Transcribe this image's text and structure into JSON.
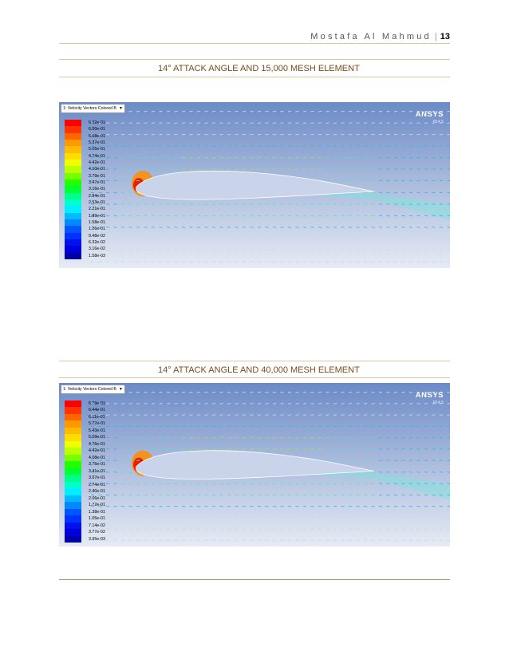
{
  "header": {
    "author": "Mostafa Al Mahmud",
    "separator": "|",
    "page_number": "13"
  },
  "figures": [
    {
      "caption": "14° ATTACK ANGLE AND 15,000 MESH ELEMENT",
      "dropdown": {
        "label": "1: Velocity Vectors Colored B",
        "arrow": "▼"
      },
      "logo": {
        "name": "ANSYS",
        "version": "R14.5"
      },
      "legend": {
        "labels": [
          "6.32e-01",
          "6.00e-01",
          "5.68e-01",
          "5.37e-01",
          "5.05e-01",
          "4.74e-01",
          "4.42e-01",
          "4.10e-01",
          "3.79e-01",
          "3.47e-01",
          "3.16e-01",
          "2.84e-01",
          "2.53e-01",
          "2.21e-01",
          "1.89e-01",
          "1.58e-01",
          "1.26e-01",
          "9.48e-02",
          "6.32e-02",
          "3.16e-02",
          "1.58e-03"
        ]
      }
    },
    {
      "caption": "14° ATTACK ANGLE AND 40,000 MESH ELEMENT",
      "dropdown": {
        "label": "1: Velocity Vectors Colored B",
        "arrow": "▼"
      },
      "logo": {
        "name": "ANSYS",
        "version": "R14.5"
      },
      "legend": {
        "labels": [
          "6.79e-01",
          "6.44e-01",
          "6.11e-01",
          "5.77e-01",
          "5.43e-01",
          "5.09e-01",
          "4.76e-01",
          "4.42e-01",
          "4.08e-01",
          "3.75e-01",
          "3.41e-01",
          "3.07e-01",
          "2.74e-01",
          "2.40e-01",
          "2.06e-01",
          "1.72e-01",
          "1.38e-01",
          "1.05e-01",
          "7.14e-02",
          "3.77e-02",
          "3.95e-03"
        ]
      }
    }
  ],
  "colors": {
    "caption": "#7b4a1d",
    "rule": "#b39a6a",
    "legend_scale": [
      "#ff0000",
      "#ff3300",
      "#ff6600",
      "#ff9900",
      "#ffbb00",
      "#ffdd00",
      "#eeff00",
      "#bbff00",
      "#77ff00",
      "#22ff00",
      "#00ff33",
      "#00ff88",
      "#00ffcc",
      "#00eeff",
      "#00bbff",
      "#0088ff",
      "#0055ff",
      "#0033ff",
      "#0011ee",
      "#0000dd",
      "#0000aa"
    ]
  }
}
